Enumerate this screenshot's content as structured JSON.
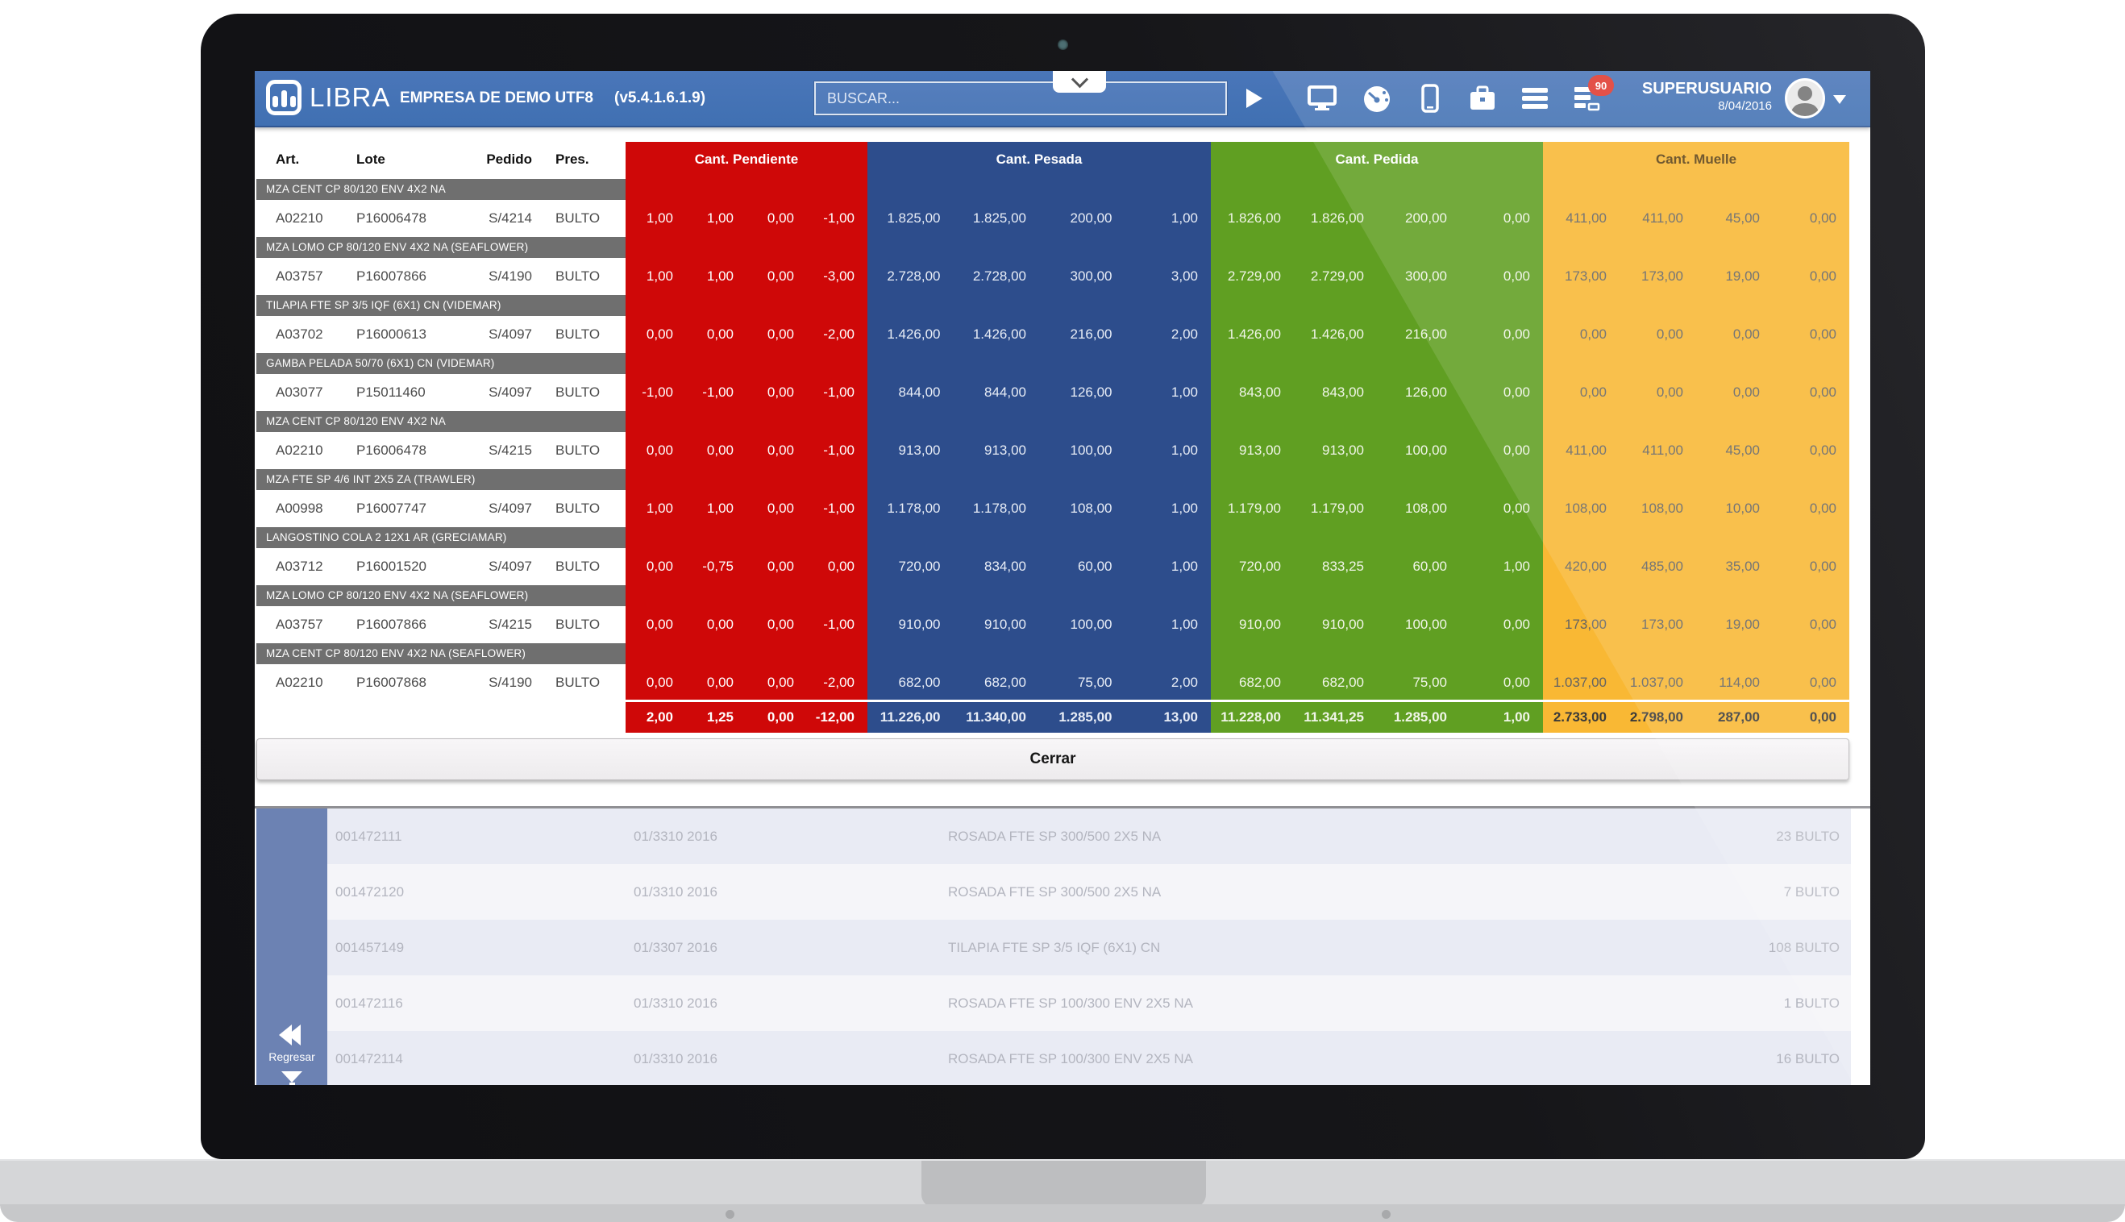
{
  "colors": {
    "red": "#cf0808",
    "blue": "#2d4d8c",
    "green": "#609f22",
    "yellow": "#f9b834",
    "topbar": "#4070b2",
    "groupbar": "#6f6f6f",
    "sidebar": "#6c82b3"
  },
  "header": {
    "logo_text": "LIBRA",
    "company": "EMPRESA DE DEMO UTF8",
    "version": "(v5.4.1.6.1.9)",
    "user": "SUPERUSUARIO",
    "date": "8/04/2016",
    "badge": "90",
    "icons": [
      "monitor-icon",
      "gauge-icon",
      "smartphone-icon",
      "briefcase-icon",
      "menu-icon",
      "tasks-icon"
    ]
  },
  "search": {
    "placeholder": "BUSCAR..."
  },
  "modal": {
    "close_label": "Cerrar"
  },
  "table": {
    "left_headers": [
      "Art.",
      "Lote",
      "Pedido",
      "Pres."
    ],
    "sections": [
      {
        "label": "Cant. Pendiente",
        "color": "#cf0808"
      },
      {
        "label": "Cant. Pesada",
        "color": "#2d4d8c"
      },
      {
        "label": "Cant. Pedida",
        "color": "#609f22"
      },
      {
        "label": "Cant. Muelle",
        "color": "#f9b834"
      }
    ],
    "groups": [
      {
        "title": "MZA CENT CP 80/120 ENV 4X2 NA",
        "row": {
          "art": "A02210",
          "lote": "P16006478",
          "pedido": "S/4214",
          "pres": "BULTO",
          "pendiente": [
            "1,00",
            "1,00",
            "0,00",
            "-1,00"
          ],
          "pesada": [
            "1.825,00",
            "1.825,00",
            "200,00",
            "1,00"
          ],
          "pedida": [
            "1.826,00",
            "1.826,00",
            "200,00",
            "0,00"
          ],
          "muelle": [
            "411,00",
            "411,00",
            "45,00",
            "0,00"
          ]
        }
      },
      {
        "title": "MZA LOMO CP 80/120 ENV 4X2 NA (SEAFLOWER)",
        "row": {
          "art": "A03757",
          "lote": "P16007866",
          "pedido": "S/4190",
          "pres": "BULTO",
          "pendiente": [
            "1,00",
            "1,00",
            "0,00",
            "-3,00"
          ],
          "pesada": [
            "2.728,00",
            "2.728,00",
            "300,00",
            "3,00"
          ],
          "pedida": [
            "2.729,00",
            "2.729,00",
            "300,00",
            "0,00"
          ],
          "muelle": [
            "173,00",
            "173,00",
            "19,00",
            "0,00"
          ]
        }
      },
      {
        "title": "TILAPIA FTE SP 3/5 IQF (6X1) CN (VIDEMAR)",
        "row": {
          "art": "A03702",
          "lote": "P16000613",
          "pedido": "S/4097",
          "pres": "BULTO",
          "pendiente": [
            "0,00",
            "0,00",
            "0,00",
            "-2,00"
          ],
          "pesada": [
            "1.426,00",
            "1.426,00",
            "216,00",
            "2,00"
          ],
          "pedida": [
            "1.426,00",
            "1.426,00",
            "216,00",
            "0,00"
          ],
          "muelle": [
            "0,00",
            "0,00",
            "0,00",
            "0,00"
          ]
        }
      },
      {
        "title": "GAMBA PELADA 50/70 (6X1) CN (VIDEMAR)",
        "row": {
          "art": "A03077",
          "lote": "P15011460",
          "pedido": "S/4097",
          "pres": "BULTO",
          "pendiente": [
            "-1,00",
            "-1,00",
            "0,00",
            "-1,00"
          ],
          "pesada": [
            "844,00",
            "844,00",
            "126,00",
            "1,00"
          ],
          "pedida": [
            "843,00",
            "843,00",
            "126,00",
            "0,00"
          ],
          "muelle": [
            "0,00",
            "0,00",
            "0,00",
            "0,00"
          ]
        }
      },
      {
        "title": "MZA CENT CP 80/120 ENV 4X2 NA",
        "row": {
          "art": "A02210",
          "lote": "P16006478",
          "pedido": "S/4215",
          "pres": "BULTO",
          "pendiente": [
            "0,00",
            "0,00",
            "0,00",
            "-1,00"
          ],
          "pesada": [
            "913,00",
            "913,00",
            "100,00",
            "1,00"
          ],
          "pedida": [
            "913,00",
            "913,00",
            "100,00",
            "0,00"
          ],
          "muelle": [
            "411,00",
            "411,00",
            "45,00",
            "0,00"
          ]
        }
      },
      {
        "title": "MZA FTE SP 4/6 INT 2X5 ZA (TRAWLER)",
        "row": {
          "art": "A00998",
          "lote": "P16007747",
          "pedido": "S/4097",
          "pres": "BULTO",
          "pendiente": [
            "1,00",
            "1,00",
            "0,00",
            "-1,00"
          ],
          "pesada": [
            "1.178,00",
            "1.178,00",
            "108,00",
            "1,00"
          ],
          "pedida": [
            "1.179,00",
            "1.179,00",
            "108,00",
            "0,00"
          ],
          "muelle": [
            "108,00",
            "108,00",
            "10,00",
            "0,00"
          ]
        }
      },
      {
        "title": "LANGOSTINO COLA 2 12X1 AR (GRECIAMAR)",
        "row": {
          "art": "A03712",
          "lote": "P16001520",
          "pedido": "S/4097",
          "pres": "BULTO",
          "pendiente": [
            "0,00",
            "-0,75",
            "0,00",
            "0,00"
          ],
          "pesada": [
            "720,00",
            "834,00",
            "60,00",
            "1,00"
          ],
          "pedida": [
            "720,00",
            "833,25",
            "60,00",
            "1,00"
          ],
          "muelle": [
            "420,00",
            "485,00",
            "35,00",
            "0,00"
          ]
        }
      },
      {
        "title": "MZA LOMO CP 80/120 ENV 4X2 NA (SEAFLOWER)",
        "row": {
          "art": "A03757",
          "lote": "P16007866",
          "pedido": "S/4215",
          "pres": "BULTO",
          "pendiente": [
            "0,00",
            "0,00",
            "0,00",
            "-1,00"
          ],
          "pesada": [
            "910,00",
            "910,00",
            "100,00",
            "1,00"
          ],
          "pedida": [
            "910,00",
            "910,00",
            "100,00",
            "0,00"
          ],
          "muelle": [
            "173,00",
            "173,00",
            "19,00",
            "0,00"
          ]
        }
      },
      {
        "title": "MZA CENT CP 80/120 ENV 4X2 NA (SEAFLOWER)",
        "row": {
          "art": "A02210",
          "lote": "P16007868",
          "pedido": "S/4190",
          "pres": "BULTO",
          "pendiente": [
            "0,00",
            "0,00",
            "0,00",
            "-2,00"
          ],
          "pesada": [
            "682,00",
            "682,00",
            "75,00",
            "2,00"
          ],
          "pedida": [
            "682,00",
            "682,00",
            "75,00",
            "0,00"
          ],
          "muelle": [
            "1.037,00",
            "1.037,00",
            "114,00",
            "0,00"
          ]
        }
      }
    ],
    "totals": {
      "pendiente": [
        "2,00",
        "1,25",
        "0,00",
        "-12,00"
      ],
      "pesada": [
        "11.226,00",
        "11.340,00",
        "1.285,00",
        "13,00"
      ],
      "pedida": [
        "11.228,00",
        "11.341,25",
        "1.285,00",
        "1,00"
      ],
      "muelle": [
        "2.733,00",
        "2.798,00",
        "287,00",
        "0,00"
      ]
    }
  },
  "sidebar": {
    "back_label": "Regresar"
  },
  "list": {
    "rows": [
      {
        "id": "001472111",
        "date": "01/3310 2016",
        "desc": "ROSADA FTE SP 300/500 2X5 NA",
        "qty": "23 BULTO"
      },
      {
        "id": "001472120",
        "date": "01/3310 2016",
        "desc": "ROSADA FTE SP 300/500 2X5 NA",
        "qty": "7 BULTO"
      },
      {
        "id": "001457149",
        "date": "01/3307 2016",
        "desc": "TILAPIA FTE SP 3/5 IQF (6X1) CN",
        "qty": "108 BULTO"
      },
      {
        "id": "001472116",
        "date": "01/3310 2016",
        "desc": "ROSADA FTE SP 100/300 ENV 2X5 NA",
        "qty": "1 BULTO"
      },
      {
        "id": "001472114",
        "date": "01/3310 2016",
        "desc": "ROSADA FTE SP 100/300 ENV 2X5 NA",
        "qty": "16 BULTO"
      }
    ]
  }
}
